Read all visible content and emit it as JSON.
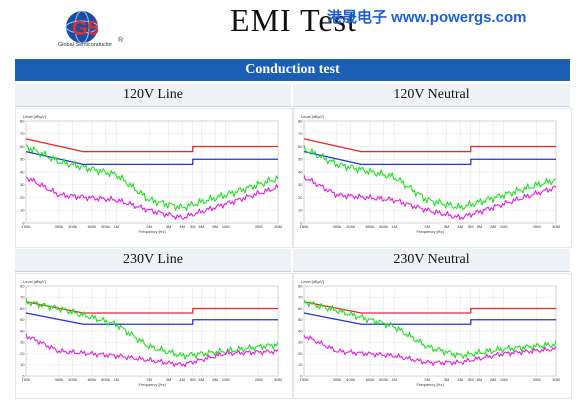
{
  "header": {
    "title": "EMI  Test",
    "brand": "港晟电子  www.powergs.com",
    "logo_text": "G5",
    "logo_subtitle": "Global Semiconductor",
    "logo_mark": "®"
  },
  "section_title": "Conduction test",
  "panels": [
    {
      "label": "120V Line"
    },
    {
      "label": "120V Neutral"
    },
    {
      "label": "230V Line"
    },
    {
      "label": "230V Neutral"
    }
  ],
  "chart_common": {
    "ylabel": "Level [dBµV]",
    "xlabel": "Frequency [Hz]",
    "y_ticks": [
      "80",
      "70",
      "60",
      "50",
      "40",
      "30",
      "20",
      "10",
      "0"
    ],
    "x_ticks": [
      "150k",
      "300k",
      "400k",
      "600k",
      "800k",
      "1M",
      "2M",
      "3M",
      "4M",
      "5M",
      "6M",
      "8M",
      "10M",
      "20M",
      "30M"
    ],
    "colors": {
      "limit_qp": "#e8262a",
      "limit_avg": "#2233d8",
      "qp": "#22e022",
      "avg": "#e020e0"
    }
  },
  "chart_data": [
    {
      "type": "line",
      "ylim": [
        0,
        80
      ],
      "x_scale": "log",
      "series": [
        {
          "x": [
            "150k",
            "500k",
            "5M",
            "30M"
          ],
          "values": [
            66,
            56,
            60,
            60
          ]
        },
        {
          "x": [
            "150k",
            "500k",
            "5M",
            "30M"
          ],
          "values": [
            56,
            46,
            50,
            50
          ]
        },
        {
          "x": [
            "150k",
            "300k",
            "1M",
            "2M",
            "4M",
            "10M",
            "30M"
          ],
          "values": [
            60,
            48,
            38,
            18,
            12,
            22,
            35
          ]
        },
        {
          "x": [
            "150k",
            "300k",
            "1M",
            "2M",
            "4M",
            "10M",
            "30M"
          ],
          "values": [
            36,
            22,
            18,
            10,
            4,
            15,
            28
          ]
        }
      ]
    },
    {
      "type": "line",
      "ylim": [
        0,
        80
      ],
      "x_scale": "log",
      "series": [
        {
          "x": [
            "150k",
            "500k",
            "5M",
            "30M"
          ],
          "values": [
            66,
            56,
            60,
            60
          ]
        },
        {
          "x": [
            "150k",
            "500k",
            "5M",
            "30M"
          ],
          "values": [
            56,
            46,
            50,
            50
          ]
        },
        {
          "x": [
            "150k",
            "300k",
            "1M",
            "2M",
            "4M",
            "10M",
            "30M"
          ],
          "values": [
            58,
            46,
            36,
            18,
            12,
            22,
            34
          ]
        },
        {
          "x": [
            "150k",
            "300k",
            "1M",
            "2M",
            "4M",
            "10M",
            "30M"
          ],
          "values": [
            36,
            22,
            18,
            10,
            4,
            15,
            28
          ]
        }
      ]
    },
    {
      "type": "line",
      "ylim": [
        0,
        80
      ],
      "x_scale": "log",
      "series": [
        {
          "x": [
            "150k",
            "500k",
            "5M",
            "30M"
          ],
          "values": [
            66,
            56,
            60,
            60
          ]
        },
        {
          "x": [
            "150k",
            "500k",
            "5M",
            "30M"
          ],
          "values": [
            56,
            46,
            50,
            50
          ]
        },
        {
          "x": [
            "150k",
            "300k",
            "1M",
            "2M",
            "4M",
            "10M",
            "30M"
          ],
          "values": [
            66,
            60,
            46,
            26,
            18,
            22,
            28
          ]
        },
        {
          "x": [
            "150k",
            "300k",
            "1M",
            "2M",
            "4M",
            "10M",
            "30M"
          ],
          "values": [
            36,
            22,
            18,
            14,
            10,
            20,
            22
          ]
        }
      ]
    },
    {
      "type": "line",
      "ylim": [
        0,
        80
      ],
      "x_scale": "log",
      "series": [
        {
          "x": [
            "150k",
            "500k",
            "5M",
            "30M"
          ],
          "values": [
            66,
            56,
            60,
            60
          ]
        },
        {
          "x": [
            "150k",
            "500k",
            "5M",
            "30M"
          ],
          "values": [
            56,
            46,
            50,
            50
          ]
        },
        {
          "x": [
            "150k",
            "300k",
            "1M",
            "2M",
            "4M",
            "10M",
            "30M"
          ],
          "values": [
            66,
            58,
            44,
            26,
            18,
            24,
            28
          ]
        },
        {
          "x": [
            "150k",
            "300k",
            "1M",
            "2M",
            "4M",
            "10M",
            "30M"
          ],
          "values": [
            36,
            22,
            18,
            12,
            12,
            20,
            24
          ]
        }
      ]
    }
  ]
}
